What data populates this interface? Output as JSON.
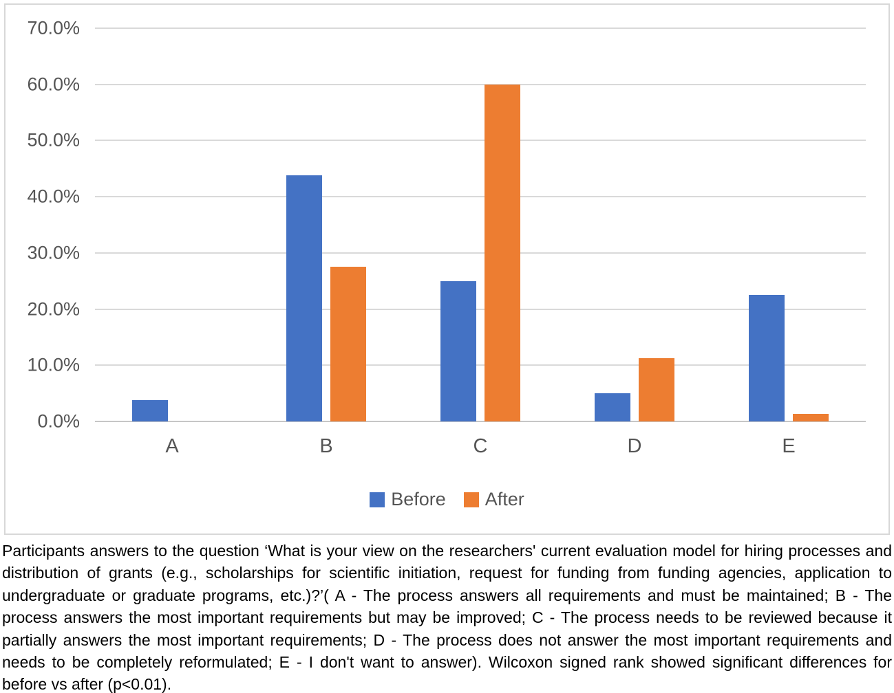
{
  "chart_data": {
    "type": "bar",
    "categories": [
      "A",
      "B",
      "C",
      "D",
      "E"
    ],
    "series": [
      {
        "name": "Before",
        "color": "#4472C4",
        "values": [
          3.8,
          43.8,
          25.0,
          5.0,
          22.5
        ]
      },
      {
        "name": "After",
        "color": "#ED7D31",
        "values": [
          0.0,
          27.5,
          60.0,
          11.3,
          1.3
        ]
      }
    ],
    "title": "",
    "xlabel": "",
    "ylabel": "",
    "ylim": [
      0,
      70
    ],
    "y_tick_step": 10,
    "y_tick_labels": [
      "70.0%",
      "60.0%",
      "50.0%",
      "40.0%",
      "30.0%",
      "20.0%",
      "10.0%",
      "0.0%"
    ],
    "grid": true,
    "legend_position": "bottom",
    "gridline_color": "#D9D9D9",
    "tick_label_color": "#555555"
  },
  "caption": {
    "text": "Participants answers to the question ‘What is your view on the researchers' current evaluation model for hiring processes and distribution of grants (e.g., scholarships for scientific initiation, request for funding from funding agencies, application to undergraduate or graduate programs, etc.)?’( A - The process answers all requirements and must be maintained; B - The process answers the most important requirements but may be improved; C - The process needs to be reviewed because it partially answers the most important requirements; D - The process does not answer the most important requirements and needs to be completely reformulated; E - I don't want to answer). Wilcoxon signed rank showed significant differences for before vs after (p<0.01)."
  }
}
